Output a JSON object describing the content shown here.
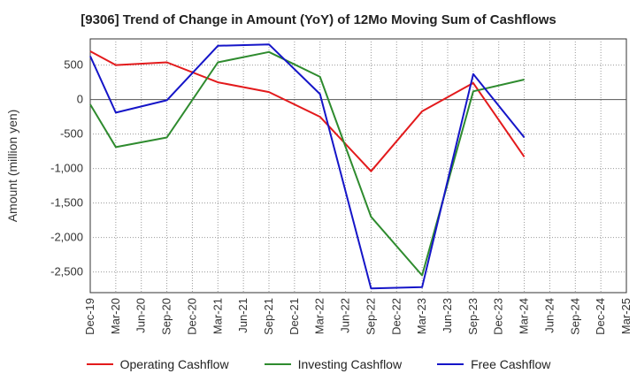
{
  "chart_data": {
    "type": "line",
    "title": "[9306]  Trend of Change in Amount (YoY) of 12Mo Moving Sum of Cashflows",
    "xlabel": "",
    "ylabel": "Amount (million yen)",
    "ylim": [
      -2800,
      880
    ],
    "yticks": [
      500,
      0,
      -500,
      -1000,
      -1500,
      -2000,
      -2500
    ],
    "ytick_labels": [
      "500",
      "0",
      "-500",
      "-1,000",
      "-1,500",
      "-2,000",
      "-2,500"
    ],
    "categories": [
      "Dec-19",
      "Mar-20",
      "Jun-20",
      "Sep-20",
      "Dec-20",
      "Mar-21",
      "Jun-21",
      "Sep-21",
      "Dec-21",
      "Mar-22",
      "Jun-22",
      "Sep-22",
      "Dec-22",
      "Mar-23",
      "Jun-23",
      "Sep-23",
      "Dec-23",
      "Mar-24",
      "Jun-24",
      "Sep-24",
      "Dec-24",
      "Mar-25"
    ],
    "series": [
      {
        "name": "Operating Cashflow",
        "color": "#e31a1c",
        "values": [
          700,
          500,
          null,
          540,
          null,
          250,
          null,
          110,
          null,
          -250,
          null,
          -1040,
          null,
          -170,
          null,
          240,
          null,
          -830,
          null,
          null,
          null,
          null
        ]
      },
      {
        "name": "Investing Cashflow",
        "color": "#2e8b2e",
        "values": [
          -70,
          -690,
          null,
          -550,
          null,
          540,
          null,
          690,
          null,
          330,
          null,
          -1700,
          null,
          -2550,
          null,
          120,
          null,
          290,
          null,
          null,
          null,
          null
        ]
      },
      {
        "name": "Free Cashflow",
        "color": "#1515c8",
        "values": [
          630,
          -190,
          null,
          -10,
          null,
          780,
          null,
          800,
          null,
          80,
          null,
          -2740,
          null,
          -2720,
          null,
          370,
          null,
          -550,
          null,
          null,
          null,
          null
        ]
      }
    ],
    "grid": true,
    "legend_position": "bottom"
  }
}
